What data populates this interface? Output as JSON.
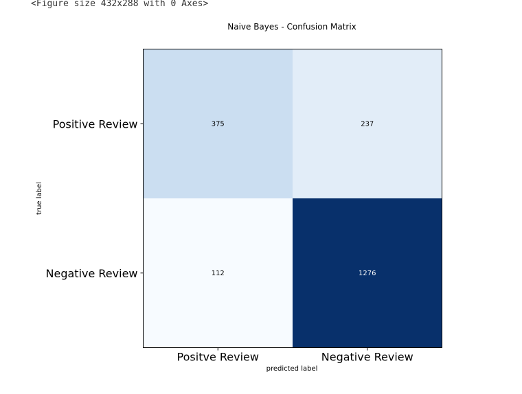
{
  "output_text": "<Figure size 432x288 with 0 Axes>",
  "chart_data": {
    "type": "heatmap",
    "title": "Naive Bayes - Confusion Matrix",
    "xlabel": "predicted label",
    "ylabel": "true label",
    "x_categories": [
      "Positve Review",
      "Negative Review"
    ],
    "y_categories": [
      "Positive Review",
      "Negative Review"
    ],
    "values": [
      [
        375,
        237
      ],
      [
        112,
        1276
      ]
    ],
    "colormap": "Blues",
    "grid": false,
    "colors": {
      "low": "#f7fbff",
      "high": "#08306b",
      "text_on_light": "#000000",
      "text_on_dark": "#ffffff"
    }
  }
}
